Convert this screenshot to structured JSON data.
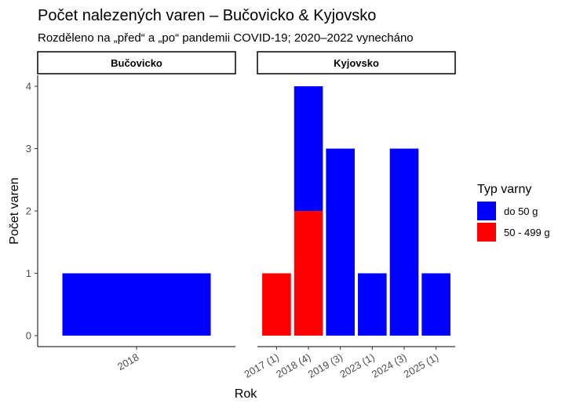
{
  "chart_data": {
    "type": "bar",
    "stacked": true,
    "title": "Počet nalezených varen – Bučovicko & Kyjovsko",
    "subtitle": "Rozděleno na „před“ a „po“ pandemii COVID-19; 2020–2022 vynecháno",
    "xlabel": "Rok",
    "ylabel": "Počet varen",
    "ylim": [
      0,
      4.2
    ],
    "yticks": [
      0,
      1,
      2,
      3,
      4
    ],
    "grid": false,
    "legend": {
      "title": "Typ varny",
      "placement": "right",
      "entries": [
        {
          "name": "do 50 g",
          "color": "#0000FF"
        },
        {
          "name": "50 - 499 g",
          "color": "#FF0000"
        }
      ]
    },
    "panels": [
      {
        "name": "Bučovicko",
        "categories": [
          "2018"
        ],
        "series": [
          {
            "name": "50 - 499 g",
            "values": [
              0
            ]
          },
          {
            "name": "do 50 g",
            "values": [
              1
            ]
          }
        ]
      },
      {
        "name": "Kyjovsko",
        "categories": [
          "2017 (1)",
          "2018 (4)",
          "2019 (3)",
          "2023 (1)",
          "2024 (3)",
          "2025 (1)"
        ],
        "series": [
          {
            "name": "50 - 499 g",
            "values": [
              1,
              2,
              0,
              0,
              0,
              0
            ]
          },
          {
            "name": "do 50 g",
            "values": [
              0,
              2,
              3,
              1,
              3,
              1
            ]
          }
        ]
      }
    ]
  }
}
